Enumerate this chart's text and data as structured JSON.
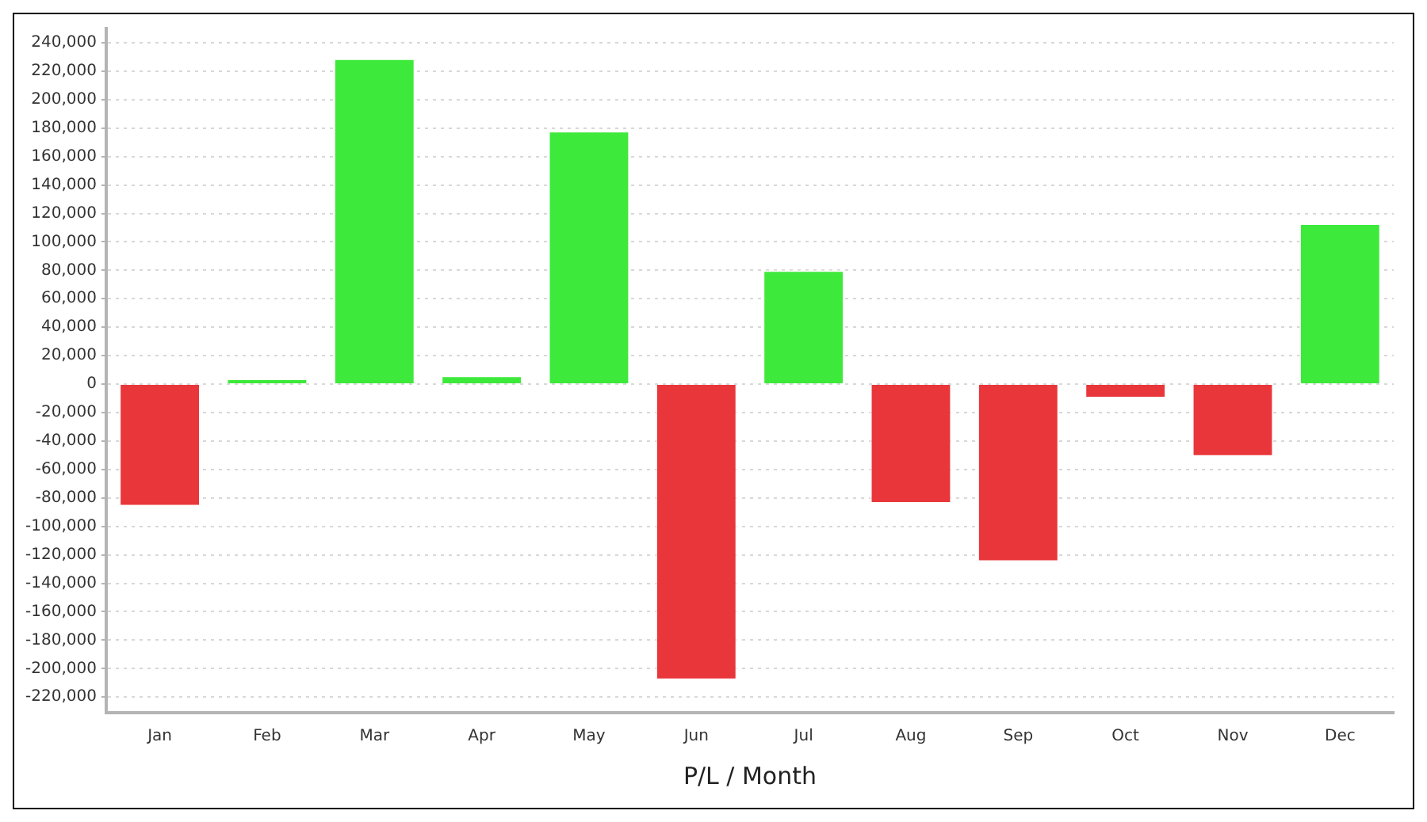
{
  "chart_data": {
    "type": "bar",
    "xlabel": "P/L / Month",
    "categories": [
      "Jan",
      "Feb",
      "Mar",
      "Apr",
      "May",
      "Jun",
      "Jul",
      "Aug",
      "Sep",
      "Oct",
      "Nov",
      "Dec"
    ],
    "values": [
      -86000,
      4000,
      229000,
      6000,
      178000,
      -208000,
      80000,
      -84000,
      -125000,
      -10000,
      -51000,
      113000
    ],
    "colors": [
      "#e8363b",
      "#3de93a",
      "#3de93a",
      "#3de93a",
      "#3de93a",
      "#e8363b",
      "#3de93a",
      "#e8363b",
      "#e8363b",
      "#e8363b",
      "#e8363b",
      "#3de93a"
    ],
    "ylim": [
      -231000,
      250000
    ],
    "yticks": [
      {
        "value": -220000,
        "label": "-220,000"
      },
      {
        "value": -200000,
        "label": "-200,000"
      },
      {
        "value": -180000,
        "label": "-180,000"
      },
      {
        "value": -160000,
        "label": "-160,000"
      },
      {
        "value": -140000,
        "label": "-140,000"
      },
      {
        "value": -120000,
        "label": "-120,000"
      },
      {
        "value": -100000,
        "label": "-100,000"
      },
      {
        "value": -80000,
        "label": "-80,000"
      },
      {
        "value": -60000,
        "label": "-60,000"
      },
      {
        "value": -40000,
        "label": "-40,000"
      },
      {
        "value": -20000,
        "label": "-20,000"
      },
      0,
      {
        "value": 20000,
        "label": "20,000"
      },
      {
        "value": 40000,
        "label": "40,000"
      },
      {
        "value": 60000,
        "label": "60,000"
      },
      {
        "value": 80000,
        "label": "80,000"
      },
      {
        "value": 100000,
        "label": "100,000"
      },
      {
        "value": 120000,
        "label": "120,000"
      },
      {
        "value": 140000,
        "label": "140,000"
      },
      {
        "value": 160000,
        "label": "160,000"
      },
      {
        "value": 180000,
        "label": "180,000"
      },
      {
        "value": 200000,
        "label": "200,000"
      },
      {
        "value": 220000,
        "label": "220,000"
      },
      {
        "value": 240000,
        "label": "240,000"
      }
    ],
    "grid": "y",
    "legend": false
  }
}
